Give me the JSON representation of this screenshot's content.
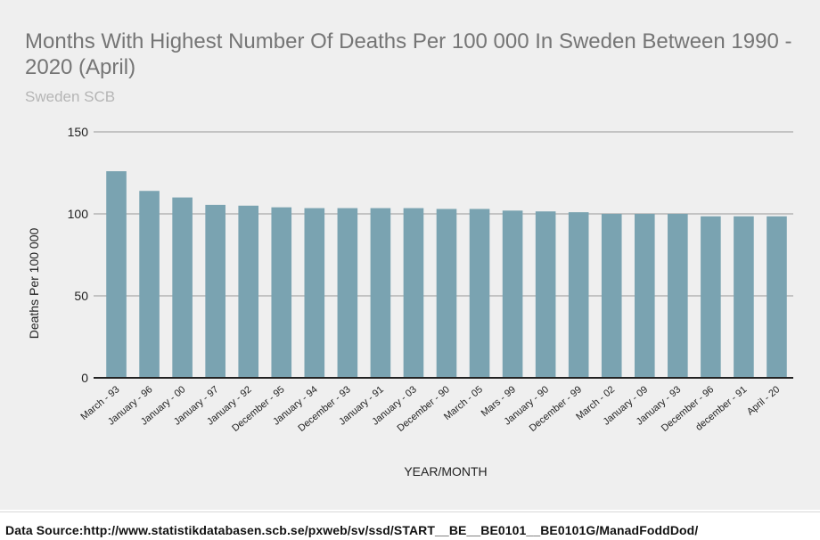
{
  "chart_data": {
    "type": "bar",
    "title": "Months With Highest Number Of Deaths Per 100 000 In Sweden Between 1990 - 2020 (April)",
    "subtitle": "Sweden SCB",
    "xlabel": "YEAR/MONTH",
    "ylabel": "Deaths Per 100 000",
    "ylim": [
      0,
      150
    ],
    "yticks": [
      0,
      50,
      100,
      150
    ],
    "grid": true,
    "bar_color": "#7aa3b1",
    "categories": [
      "March - 93",
      "January - 96",
      "January - 00",
      "January - 97",
      "January - 92",
      "December - 95",
      "January - 94",
      "December - 93",
      "January - 91",
      "January - 03",
      "December - 90",
      "March - 05",
      "Mars - 99",
      "January - 90",
      "December - 99",
      "March - 02",
      "January - 09",
      "January - 93",
      "December - 96",
      "december - 91",
      "April - 20"
    ],
    "values": [
      126,
      114,
      110,
      105.5,
      105,
      104,
      103.5,
      103.5,
      103.5,
      103.5,
      103,
      103,
      102,
      101.5,
      101,
      100,
      100,
      100,
      98.5,
      98.5,
      98.5
    ]
  },
  "footer": {
    "source": "Data Source:http://www.statistikdatabasen.scb.se/pxweb/sv/ssd/START__BE__BE0101__BE0101G/ManadFoddDod/"
  }
}
